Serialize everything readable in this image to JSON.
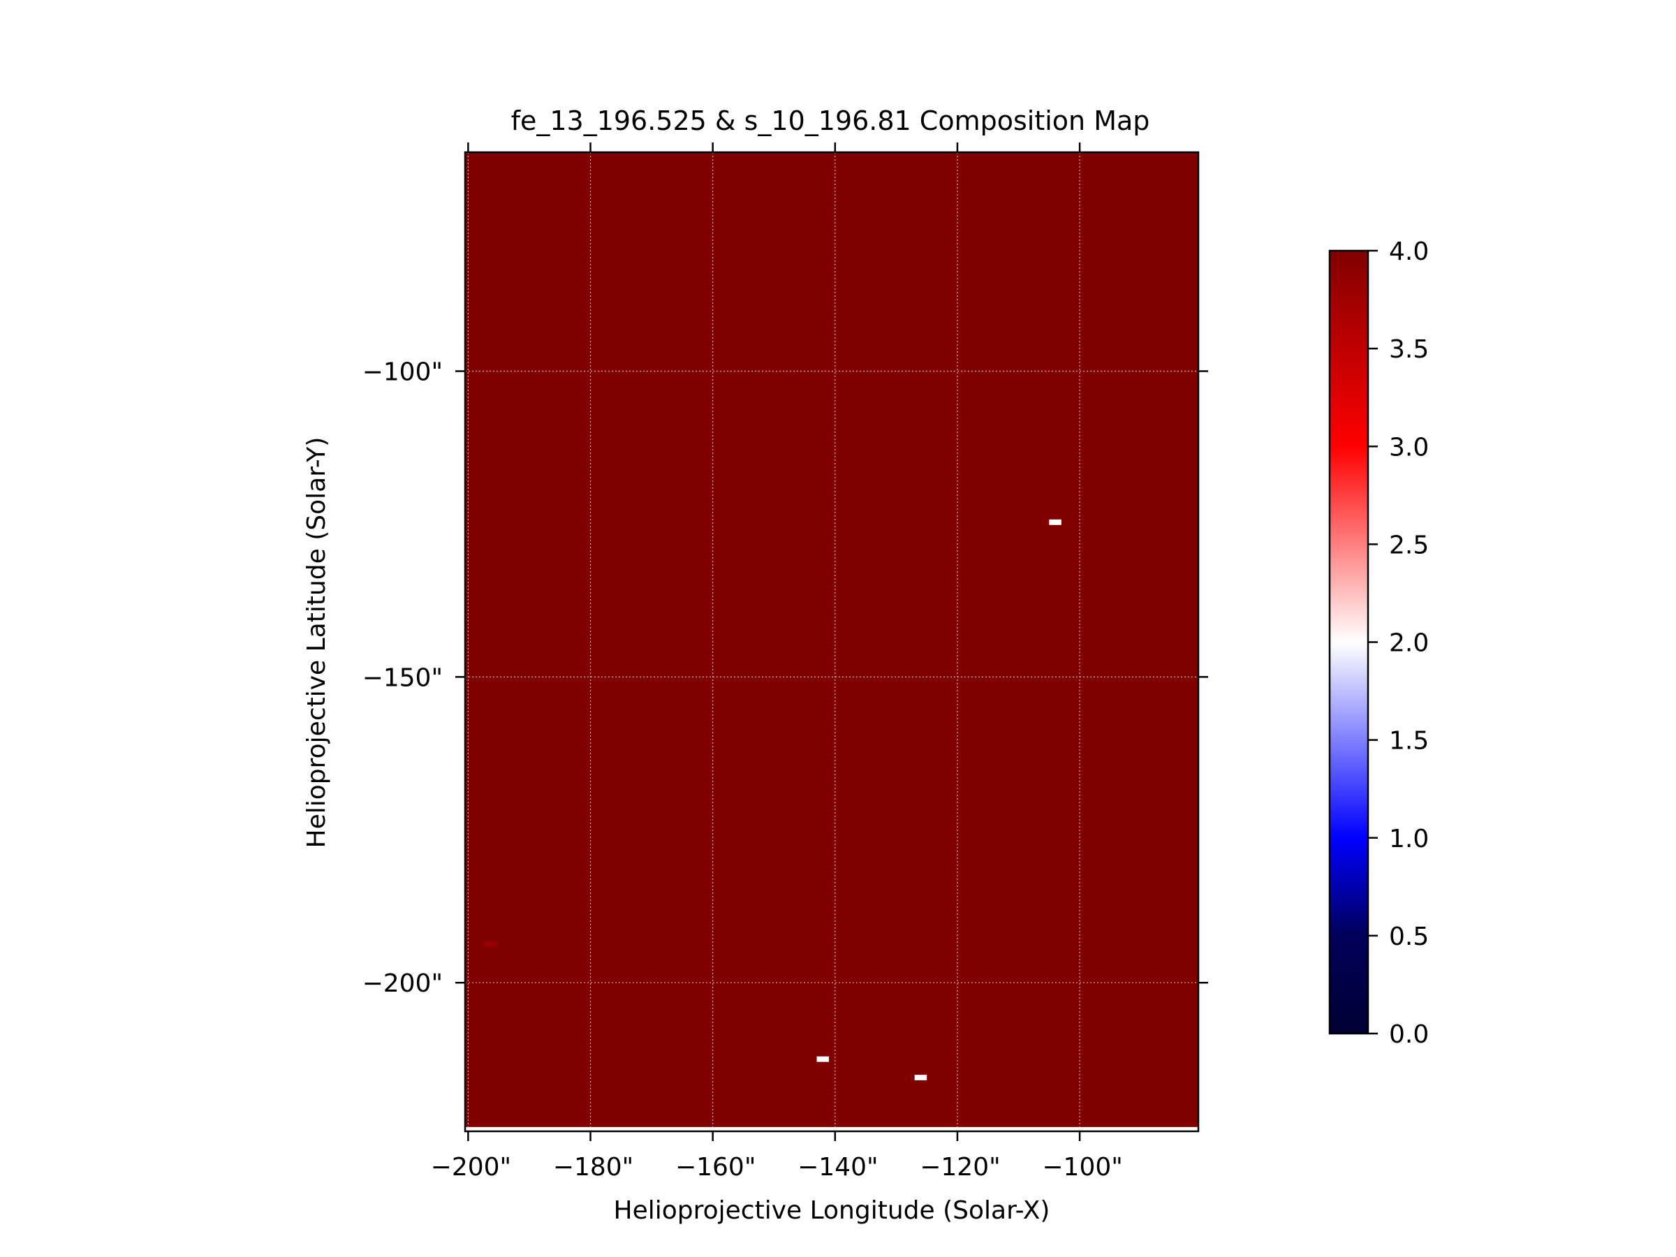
{
  "chart_data": {
    "type": "heatmap",
    "title": "fe_13_196.525 & s_10_196.81 Composition Map",
    "xlabel": "Helioprojective Longitude (Solar-X)",
    "ylabel": "Helioprojective Latitude (Solar-Y)",
    "xlim": [
      -200.5,
      -80.6
    ],
    "ylim": [
      -224.3,
      -64.2
    ],
    "x_ticks": [
      -200,
      -180,
      -160,
      -140,
      -120,
      -100
    ],
    "x_tick_labels": [
      "−200\"",
      "−180\"",
      "−160\"",
      "−140\"",
      "−120\"",
      "−100\""
    ],
    "y_ticks": [
      -100,
      -150,
      -200
    ],
    "y_tick_labels": [
      "−100\"",
      "−150\"",
      "−200\""
    ],
    "grid": true,
    "background_value": 4.0,
    "data_bottom_y": -223.6,
    "anomalies": [
      {
        "x": -104.0,
        "y": -124.7,
        "width": 2.0,
        "height": 0.9,
        "value": 2.0
      },
      {
        "x": -142.0,
        "y": -212.5,
        "width": 2.0,
        "height": 0.9,
        "value": 2.0
      },
      {
        "x": -126.0,
        "y": -215.5,
        "width": 2.0,
        "height": 0.9,
        "value": 2.0
      },
      {
        "x": -196.3,
        "y": -193.7,
        "width": 2.0,
        "height": 0.9,
        "value": 3.8
      }
    ],
    "colorbar": {
      "vmin": 0.0,
      "vmax": 4.0,
      "ticks": [
        0.0,
        0.5,
        1.0,
        1.5,
        2.0,
        2.5,
        3.0,
        3.5,
        4.0
      ],
      "tick_labels": [
        "0.0",
        "0.5",
        "1.0",
        "1.5",
        "2.0",
        "2.5",
        "3.0",
        "3.5",
        "4.0"
      ],
      "colormap": [
        "#053061",
        "#0000ff",
        "#ffffff",
        "#ff0000",
        "#800000"
      ]
    }
  }
}
